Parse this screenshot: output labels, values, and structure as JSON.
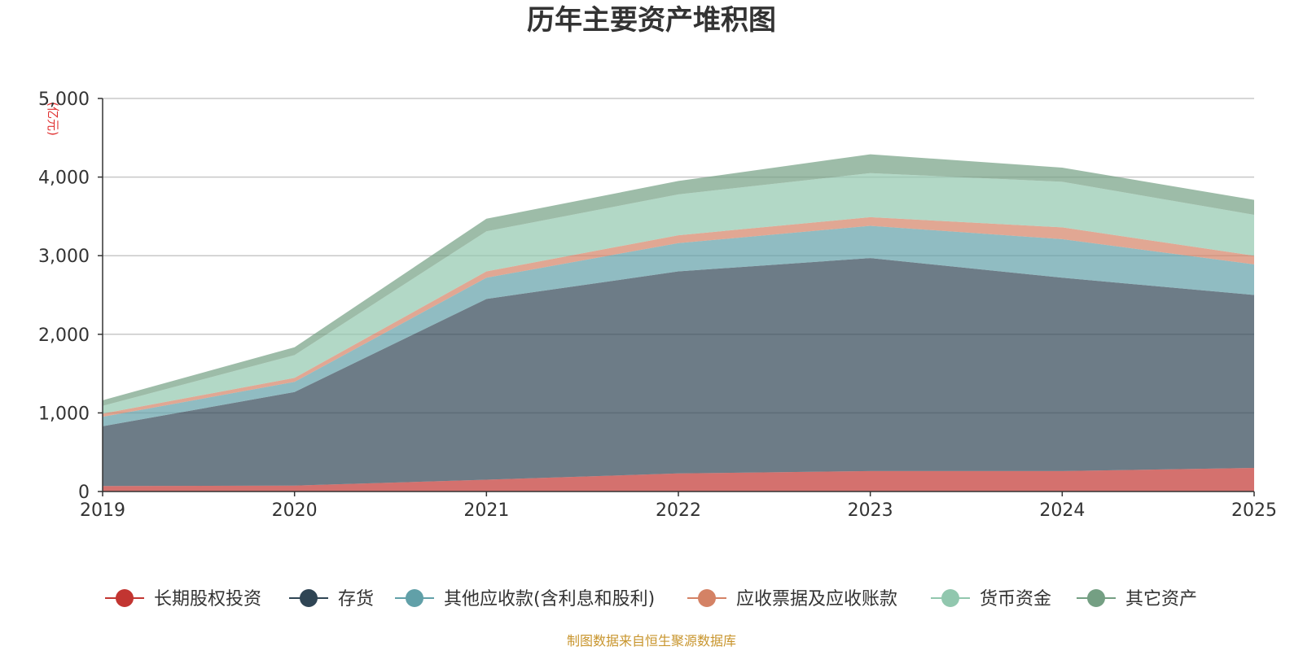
{
  "chart_data": {
    "type": "area",
    "stacked": true,
    "title": "历年主要资产堆积图",
    "unit_label": "(亿元)",
    "source": "制图数据来自恒生聚源数据库",
    "x": [
      "2019",
      "2020",
      "2021",
      "2022",
      "2023",
      "2024",
      "2025"
    ],
    "ylim": [
      0,
      5000
    ],
    "yticks": [
      0,
      1000,
      2000,
      3000,
      4000,
      5000
    ],
    "ytick_labels": [
      "0",
      "1,000",
      "2,000",
      "3,000",
      "4,000",
      "5,000"
    ],
    "grid": true,
    "legend_position": "bottom",
    "series": [
      {
        "name": "长期股权投资",
        "color": "#c23531",
        "values": [
          70,
          75,
          150,
          230,
          260,
          260,
          300
        ]
      },
      {
        "name": "存货",
        "color": "#2f4554",
        "values": [
          760,
          1190,
          2300,
          2570,
          2710,
          2460,
          2200
        ]
      },
      {
        "name": "其他应收款(含利息和股利)",
        "color": "#61a0a8",
        "values": [
          120,
          130,
          270,
          360,
          410,
          490,
          390
        ]
      },
      {
        "name": "应收票据及应收账款",
        "color": "#d48265",
        "values": [
          40,
          50,
          80,
          100,
          110,
          150,
          110
        ]
      },
      {
        "name": "货币资金",
        "color": "#91c7ae",
        "values": [
          100,
          290,
          510,
          520,
          560,
          580,
          520
        ]
      },
      {
        "name": "其它资产",
        "color": "#749f83",
        "values": [
          70,
          100,
          160,
          170,
          240,
          180,
          190
        ]
      }
    ]
  }
}
